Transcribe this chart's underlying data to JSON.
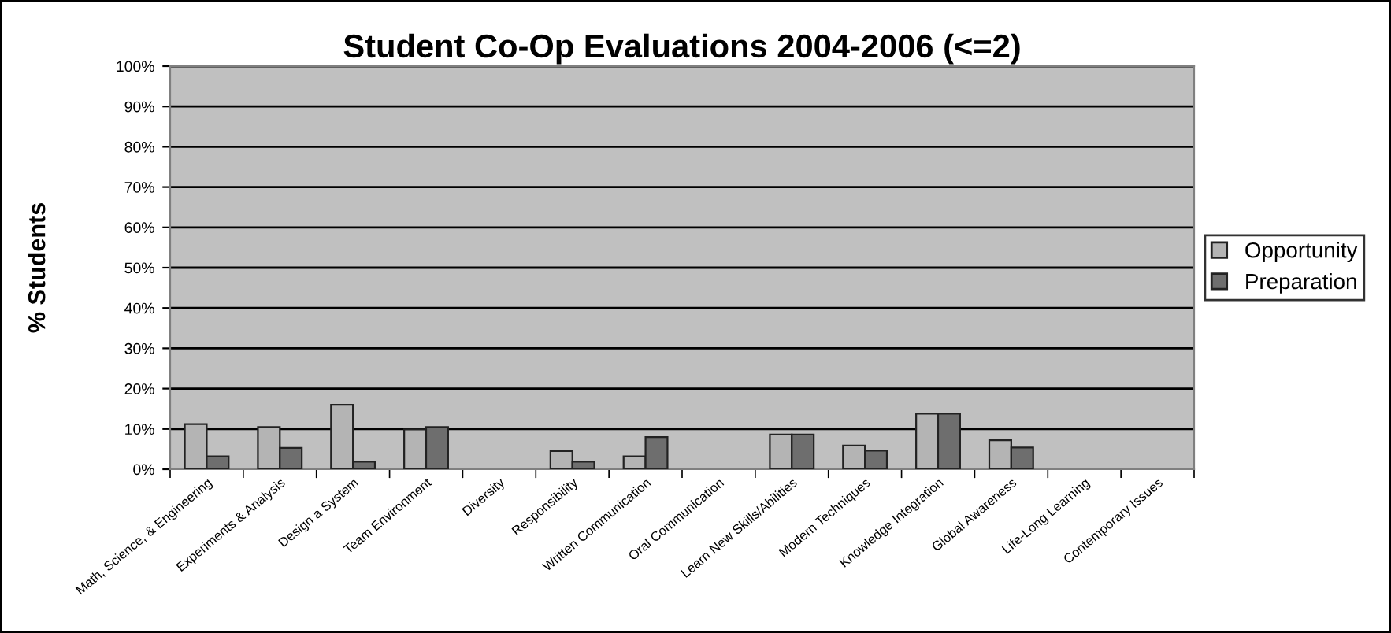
{
  "chart_data": {
    "type": "bar",
    "title": "Student Co-Op Evaluations 2004-2006 (<=2)",
    "ylabel": "% Students",
    "categories": [
      "Math, Science, & Engineering",
      "Experiments & Analysis",
      "Design a System",
      "Team Environment",
      "Diversity",
      "Responsibility",
      "Written Communication",
      "Oral Communication",
      "Learn New Skills/Abilities",
      "Modern Techniques",
      "Knowledge Integration",
      "Global Awareness",
      "Life-Long Learning",
      "Contemporary Issues"
    ],
    "series": [
      {
        "name": "Opportunity",
        "color": "#b4b4b4",
        "values": [
          11.2,
          10.5,
          16.0,
          9.9,
          null,
          4.5,
          3.2,
          null,
          8.6,
          5.9,
          13.8,
          7.2,
          null,
          null
        ]
      },
      {
        "name": "Preparation",
        "color": "#6e6e6e",
        "values": [
          3.2,
          5.3,
          1.9,
          10.5,
          null,
          1.9,
          8.0,
          null,
          8.6,
          4.6,
          13.8,
          5.4,
          null,
          null
        ]
      }
    ],
    "ylim": [
      0,
      100
    ],
    "yticks": [
      {
        "value": 0,
        "label": "0%"
      },
      {
        "value": 10,
        "label": "10%"
      },
      {
        "value": 20,
        "label": "20%"
      },
      {
        "value": 30,
        "label": "30%"
      },
      {
        "value": 40,
        "label": "40%"
      },
      {
        "value": 50,
        "label": "50%"
      },
      {
        "value": 60,
        "label": "60%"
      },
      {
        "value": 70,
        "label": "70%"
      },
      {
        "value": 80,
        "label": "80%"
      },
      {
        "value": 90,
        "label": "90%"
      },
      {
        "value": 100,
        "label": "100%"
      }
    ],
    "grid": "y",
    "legend": "right"
  }
}
